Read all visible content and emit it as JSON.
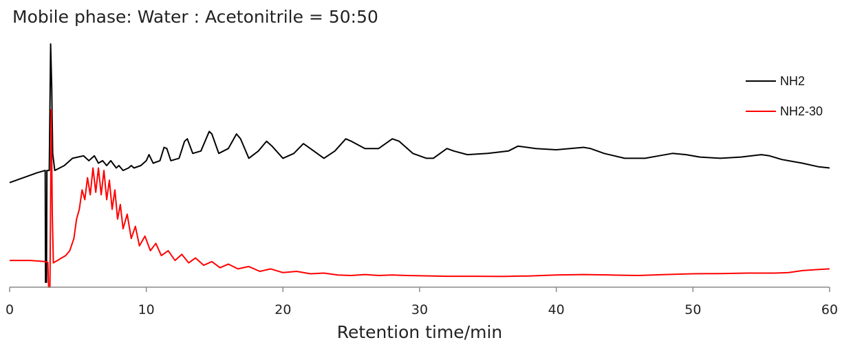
{
  "chart_data": {
    "type": "line",
    "title": "Mobile phase: Water : Acetonitrile = 50:50",
    "xlabel": "Retention time/min",
    "ylabel": "",
    "xlim": [
      0,
      60
    ],
    "xticks": [
      0,
      10,
      20,
      30,
      40,
      50,
      60
    ],
    "legend_position": "top-right",
    "grid": false,
    "series": [
      {
        "name": "NH2",
        "color": "#000000",
        "points": [
          [
            0,
            0.43
          ],
          [
            1,
            0.45
          ],
          [
            2,
            0.47
          ],
          [
            2.6,
            0.48
          ],
          [
            2.63,
            0.02
          ],
          [
            2.7,
            0.02
          ],
          [
            2.73,
            0.48
          ],
          [
            2.9,
            0.48
          ],
          [
            3.0,
            1.0
          ],
          [
            3.08,
            0.82
          ],
          [
            3.15,
            0.55
          ],
          [
            3.3,
            0.48
          ],
          [
            4,
            0.5
          ],
          [
            4.6,
            0.53
          ],
          [
            5,
            0.535
          ],
          [
            5.4,
            0.54
          ],
          [
            5.8,
            0.52
          ],
          [
            6.2,
            0.54
          ],
          [
            6.5,
            0.51
          ],
          [
            6.8,
            0.52
          ],
          [
            7.1,
            0.5
          ],
          [
            7.4,
            0.52
          ],
          [
            7.8,
            0.49
          ],
          [
            8.0,
            0.5
          ],
          [
            8.3,
            0.48
          ],
          [
            8.7,
            0.49
          ],
          [
            8.9,
            0.5
          ],
          [
            9.1,
            0.49
          ],
          [
            9.6,
            0.5
          ],
          [
            10.0,
            0.52
          ],
          [
            10.2,
            0.545
          ],
          [
            10.5,
            0.51
          ],
          [
            11.0,
            0.52
          ],
          [
            11.3,
            0.575
          ],
          [
            11.5,
            0.57
          ],
          [
            11.8,
            0.52
          ],
          [
            12.4,
            0.53
          ],
          [
            12.8,
            0.6
          ],
          [
            13.0,
            0.61
          ],
          [
            13.4,
            0.55
          ],
          [
            14.0,
            0.56
          ],
          [
            14.6,
            0.64
          ],
          [
            14.8,
            0.63
          ],
          [
            15.3,
            0.55
          ],
          [
            16.0,
            0.57
          ],
          [
            16.6,
            0.63
          ],
          [
            16.9,
            0.61
          ],
          [
            17.5,
            0.53
          ],
          [
            18.2,
            0.56
          ],
          [
            18.8,
            0.6
          ],
          [
            19.2,
            0.58
          ],
          [
            20.0,
            0.53
          ],
          [
            20.8,
            0.55
          ],
          [
            21.5,
            0.59
          ],
          [
            22.0,
            0.57
          ],
          [
            23.0,
            0.53
          ],
          [
            23.8,
            0.56
          ],
          [
            24.6,
            0.61
          ],
          [
            25.0,
            0.6
          ],
          [
            26.0,
            0.57
          ],
          [
            27.0,
            0.57
          ],
          [
            28.0,
            0.61
          ],
          [
            28.5,
            0.6
          ],
          [
            29.5,
            0.55
          ],
          [
            30.5,
            0.53
          ],
          [
            31.0,
            0.53
          ],
          [
            32.0,
            0.57
          ],
          [
            32.5,
            0.56
          ],
          [
            33.5,
            0.545
          ],
          [
            35.0,
            0.55
          ],
          [
            36.5,
            0.56
          ],
          [
            37.2,
            0.58
          ],
          [
            38.5,
            0.57
          ],
          [
            40.0,
            0.565
          ],
          [
            41.0,
            0.57
          ],
          [
            42.0,
            0.575
          ],
          [
            42.5,
            0.57
          ],
          [
            43.5,
            0.55
          ],
          [
            45.0,
            0.53
          ],
          [
            46.5,
            0.53
          ],
          [
            47.5,
            0.54
          ],
          [
            48.5,
            0.55
          ],
          [
            49.5,
            0.545
          ],
          [
            50.5,
            0.535
          ],
          [
            52.0,
            0.53
          ],
          [
            53.5,
            0.535
          ],
          [
            55.0,
            0.545
          ],
          [
            55.6,
            0.54
          ],
          [
            56.5,
            0.525
          ],
          [
            58.0,
            0.51
          ],
          [
            59.2,
            0.495
          ],
          [
            60,
            0.49
          ]
        ]
      },
      {
        "name": "NH2-30",
        "color": "#ff0000",
        "points": [
          [
            0,
            0.11
          ],
          [
            1.5,
            0.11
          ],
          [
            2.6,
            0.105
          ],
          [
            2.8,
            0.102
          ],
          [
            2.85,
            0.0
          ],
          [
            2.95,
            0.0
          ],
          [
            3.05,
            0.73
          ],
          [
            3.12,
            0.3
          ],
          [
            3.2,
            0.1
          ],
          [
            3.5,
            0.11
          ],
          [
            3.8,
            0.12
          ],
          [
            4.1,
            0.13
          ],
          [
            4.4,
            0.15
          ],
          [
            4.7,
            0.2
          ],
          [
            4.9,
            0.28
          ],
          [
            5.1,
            0.32
          ],
          [
            5.3,
            0.4
          ],
          [
            5.5,
            0.36
          ],
          [
            5.7,
            0.45
          ],
          [
            5.9,
            0.38
          ],
          [
            6.1,
            0.49
          ],
          [
            6.3,
            0.39
          ],
          [
            6.5,
            0.49
          ],
          [
            6.7,
            0.38
          ],
          [
            6.9,
            0.48
          ],
          [
            7.1,
            0.36
          ],
          [
            7.3,
            0.44
          ],
          [
            7.5,
            0.32
          ],
          [
            7.7,
            0.4
          ],
          [
            7.9,
            0.28
          ],
          [
            8.1,
            0.34
          ],
          [
            8.3,
            0.24
          ],
          [
            8.6,
            0.3
          ],
          [
            8.9,
            0.2
          ],
          [
            9.2,
            0.25
          ],
          [
            9.5,
            0.17
          ],
          [
            9.9,
            0.21
          ],
          [
            10.3,
            0.15
          ],
          [
            10.7,
            0.18
          ],
          [
            11.1,
            0.13
          ],
          [
            11.6,
            0.15
          ],
          [
            12.1,
            0.11
          ],
          [
            12.6,
            0.135
          ],
          [
            13.1,
            0.1
          ],
          [
            13.6,
            0.12
          ],
          [
            14.2,
            0.09
          ],
          [
            14.8,
            0.105
          ],
          [
            15.4,
            0.08
          ],
          [
            16.0,
            0.095
          ],
          [
            16.7,
            0.075
          ],
          [
            17.5,
            0.085
          ],
          [
            18.3,
            0.065
          ],
          [
            19.1,
            0.075
          ],
          [
            20.0,
            0.06
          ],
          [
            21.0,
            0.065
          ],
          [
            22.0,
            0.055
          ],
          [
            23.0,
            0.058
          ],
          [
            24.0,
            0.05
          ],
          [
            25.0,
            0.048
          ],
          [
            26.0,
            0.052
          ],
          [
            27.0,
            0.048
          ],
          [
            28.0,
            0.05
          ],
          [
            29.0,
            0.048
          ],
          [
            30.0,
            0.047
          ],
          [
            32.0,
            0.045
          ],
          [
            34.0,
            0.045
          ],
          [
            36.0,
            0.044
          ],
          [
            38.0,
            0.046
          ],
          [
            40.0,
            0.05
          ],
          [
            42.0,
            0.052
          ],
          [
            44.0,
            0.05
          ],
          [
            46.0,
            0.048
          ],
          [
            48.0,
            0.052
          ],
          [
            50.0,
            0.055
          ],
          [
            52.0,
            0.056
          ],
          [
            54.0,
            0.058
          ],
          [
            56.0,
            0.058
          ],
          [
            57.0,
            0.06
          ],
          [
            58.0,
            0.068
          ],
          [
            59.0,
            0.072
          ],
          [
            60,
            0.075
          ]
        ]
      }
    ]
  }
}
